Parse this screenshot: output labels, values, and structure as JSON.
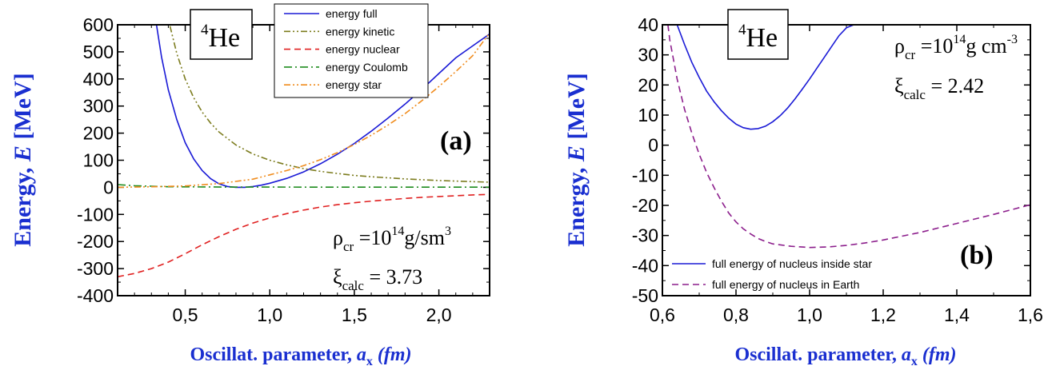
{
  "chart_data": [
    {
      "panel": "(a)",
      "type": "line",
      "nucleus_mass": "4",
      "nucleus_symbol": "He",
      "ylabel": "Energy, E [MeV]",
      "ylabel_main": "Energy, ",
      "ylabel_var": "E",
      "ylabel_unit": " [MeV]",
      "xlabel_main": "Oscillat. parameter, ",
      "xlabel_var": "a",
      "xlabel_sub": "x",
      "xlabel_unit": " (fm)",
      "xlim": [
        0.1,
        2.3
      ],
      "ylim": [
        -400,
        600
      ],
      "xticks": [
        0.5,
        1.0,
        1.5,
        2.0
      ],
      "xtick_labels": [
        "0,5",
        "1,0",
        "1,5",
        "2,0"
      ],
      "yticks": [
        -400,
        -300,
        -200,
        -100,
        0,
        100,
        200,
        300,
        400,
        500,
        600
      ],
      "ytick_labels": [
        "-400",
        "-300",
        "-200",
        "-100",
        "0",
        "100",
        "200",
        "300",
        "400",
        "500",
        "600"
      ],
      "legend_position": "top-center",
      "annotation": {
        "rho": "ρ",
        "rho_sub": "cr",
        "rho_eq": " =10",
        "rho_exp": "14",
        "rho_unit": "g/sm",
        "rho_unit_exp": "3",
        "xi": "ξ",
        "xi_sub": "calc",
        "xi_eq": " = 3.73"
      },
      "series": [
        {
          "name": "energy full",
          "color": "#1a1ad6",
          "dash": "solid",
          "points": [
            [
              0.33,
              600
            ],
            [
              0.36,
              480
            ],
            [
              0.4,
              360
            ],
            [
              0.45,
              250
            ],
            [
              0.5,
              165
            ],
            [
              0.55,
              105
            ],
            [
              0.6,
              62
            ],
            [
              0.65,
              32
            ],
            [
              0.7,
              13
            ],
            [
              0.75,
              3
            ],
            [
              0.8,
              0
            ],
            [
              0.85,
              0
            ],
            [
              0.9,
              3
            ],
            [
              0.95,
              8
            ],
            [
              1.0,
              15
            ],
            [
              1.1,
              33
            ],
            [
              1.2,
              57
            ],
            [
              1.3,
              87
            ],
            [
              1.4,
              122
            ],
            [
              1.5,
              162
            ],
            [
              1.6,
              207
            ],
            [
              1.7,
              256
            ],
            [
              1.8,
              307
            ],
            [
              1.9,
              362
            ],
            [
              2.0,
              420
            ],
            [
              2.1,
              478
            ],
            [
              2.2,
              522
            ],
            [
              2.3,
              566
            ]
          ]
        },
        {
          "name": "energy kinetic",
          "color": "#7c7c1e",
          "dash": "dashdotdot",
          "points": [
            [
              0.41,
              595
            ],
            [
              0.45,
              494
            ],
            [
              0.5,
              400
            ],
            [
              0.55,
              331
            ],
            [
              0.6,
              278
            ],
            [
              0.65,
              237
            ],
            [
              0.7,
              204
            ],
            [
              0.8,
              156
            ],
            [
              0.9,
              123
            ],
            [
              1.0,
              100
            ],
            [
              1.1,
              83
            ],
            [
              1.2,
              69
            ],
            [
              1.3,
              59
            ],
            [
              1.4,
              51
            ],
            [
              1.5,
              44
            ],
            [
              1.6,
              39
            ],
            [
              1.7,
              35
            ],
            [
              1.8,
              31
            ],
            [
              1.9,
              28
            ],
            [
              2.0,
              25
            ],
            [
              2.1,
              23
            ],
            [
              2.2,
              21
            ],
            [
              2.3,
              19
            ]
          ]
        },
        {
          "name": "energy nuclear",
          "color": "#e02020",
          "dash": "dashed",
          "points": [
            [
              0.1,
              -330
            ],
            [
              0.2,
              -318
            ],
            [
              0.3,
              -300
            ],
            [
              0.4,
              -276
            ],
            [
              0.5,
              -245
            ],
            [
              0.6,
              -212
            ],
            [
              0.7,
              -182
            ],
            [
              0.8,
              -155
            ],
            [
              0.9,
              -132
            ],
            [
              1.0,
              -113
            ],
            [
              1.1,
              -97
            ],
            [
              1.2,
              -84
            ],
            [
              1.3,
              -73
            ],
            [
              1.4,
              -64
            ],
            [
              1.5,
              -57
            ],
            [
              1.6,
              -51
            ],
            [
              1.7,
              -46
            ],
            [
              1.8,
              -41
            ],
            [
              1.9,
              -37
            ],
            [
              2.0,
              -34
            ],
            [
              2.1,
              -31
            ],
            [
              2.2,
              -28
            ],
            [
              2.3,
              -26
            ]
          ]
        },
        {
          "name": "energy Coulomb",
          "color": "#1e8c1e",
          "dash": "dashdot",
          "points": [
            [
              0.1,
              10
            ],
            [
              0.2,
              6
            ],
            [
              0.3,
              4
            ],
            [
              0.4,
              2
            ],
            [
              0.6,
              1.5
            ],
            [
              0.8,
              1
            ],
            [
              1.0,
              1
            ],
            [
              1.5,
              0.5
            ],
            [
              2.0,
              0.5
            ],
            [
              2.3,
              0.5
            ]
          ]
        },
        {
          "name": "energy star",
          "color": "#f08c1e",
          "dash": "dashdotdot",
          "points": [
            [
              0.1,
              0
            ],
            [
              0.3,
              2
            ],
            [
              0.5,
              5
            ],
            [
              0.7,
              14
            ],
            [
              0.9,
              30
            ],
            [
              1.0,
              46
            ],
            [
              1.1,
              62
            ],
            [
              1.2,
              80
            ],
            [
              1.3,
              102
            ],
            [
              1.4,
              128
            ],
            [
              1.5,
              158
            ],
            [
              1.6,
              192
            ],
            [
              1.7,
              230
            ],
            [
              1.8,
              272
            ],
            [
              1.9,
              320
            ],
            [
              2.0,
              372
            ],
            [
              2.1,
              427
            ],
            [
              2.2,
              486
            ],
            [
              2.3,
              570
            ]
          ]
        }
      ]
    },
    {
      "panel": "(b)",
      "type": "line",
      "nucleus_mass": "4",
      "nucleus_symbol": "He",
      "ylabel": "Energy, E [MeV]",
      "ylabel_main": "Energy, ",
      "ylabel_var": "E",
      "ylabel_unit": " [MeV]",
      "xlabel_main": "Oscillat. parameter, ",
      "xlabel_var": "a",
      "xlabel_sub": "x",
      "xlabel_unit": " (fm)",
      "xlim": [
        0.6,
        1.6
      ],
      "ylim": [
        -50,
        40
      ],
      "xticks": [
        0.6,
        0.8,
        1.0,
        1.2,
        1.4,
        1.6
      ],
      "xtick_labels": [
        "0,6",
        "0,8",
        "1,0",
        "1,2",
        "1,4",
        "1,6"
      ],
      "yticks": [
        -50,
        -40,
        -30,
        -20,
        -10,
        0,
        10,
        20,
        30,
        40
      ],
      "ytick_labels": [
        "-50",
        "-40",
        "-30",
        "-20",
        "-10",
        "0",
        "10",
        "20",
        "30",
        "40"
      ],
      "legend_position": "bottom-left",
      "annotation": {
        "rho": "ρ",
        "rho_sub": "cr",
        "rho_eq": " =10",
        "rho_exp": "14",
        "rho_unit": "g cm",
        "rho_unit_exp": "-3",
        "xi": "ξ",
        "xi_sub": "calc",
        "xi_eq": " = 2.42"
      },
      "series": [
        {
          "name": "full energy of nucleus inside star",
          "color": "#1a1ad6",
          "dash": "solid",
          "points": [
            [
              0.64,
              40
            ],
            [
              0.66,
              33.5
            ],
            [
              0.68,
              27.5
            ],
            [
              0.7,
              22.5
            ],
            [
              0.72,
              18
            ],
            [
              0.74,
              14.5
            ],
            [
              0.76,
              11.5
            ],
            [
              0.78,
              9
            ],
            [
              0.8,
              7
            ],
            [
              0.82,
              5.8
            ],
            [
              0.84,
              5.3
            ],
            [
              0.86,
              5.5
            ],
            [
              0.88,
              6.3
            ],
            [
              0.9,
              7.8
            ],
            [
              0.92,
              9.8
            ],
            [
              0.94,
              12.3
            ],
            [
              0.96,
              15.3
            ],
            [
              0.98,
              18.6
            ],
            [
              1.0,
              22
            ],
            [
              1.02,
              25.6
            ],
            [
              1.04,
              29.2
            ],
            [
              1.06,
              32.8
            ],
            [
              1.08,
              36.4
            ],
            [
              1.1,
              39
            ],
            [
              1.12,
              40
            ]
          ]
        },
        {
          "name": "full energy of nucleus in Earth",
          "color": "#8c1e8c",
          "dash": "dashed",
          "points": [
            [
              0.615,
              40
            ],
            [
              0.62,
              35
            ],
            [
              0.64,
              22
            ],
            [
              0.66,
              12
            ],
            [
              0.68,
              4
            ],
            [
              0.7,
              -3
            ],
            [
              0.72,
              -9
            ],
            [
              0.74,
              -14
            ],
            [
              0.76,
              -18.5
            ],
            [
              0.78,
              -22.5
            ],
            [
              0.8,
              -25.5
            ],
            [
              0.82,
              -27.8
            ],
            [
              0.84,
              -29.5
            ],
            [
              0.86,
              -31
            ],
            [
              0.88,
              -32
            ],
            [
              0.9,
              -32.8
            ],
            [
              0.95,
              -33.6
            ],
            [
              1.0,
              -34
            ],
            [
              1.05,
              -33.8
            ],
            [
              1.1,
              -33.3
            ],
            [
              1.15,
              -32.5
            ],
            [
              1.2,
              -31.5
            ],
            [
              1.3,
              -29
            ],
            [
              1.4,
              -26
            ],
            [
              1.5,
              -23
            ],
            [
              1.6,
              -19.8
            ]
          ]
        }
      ]
    }
  ]
}
